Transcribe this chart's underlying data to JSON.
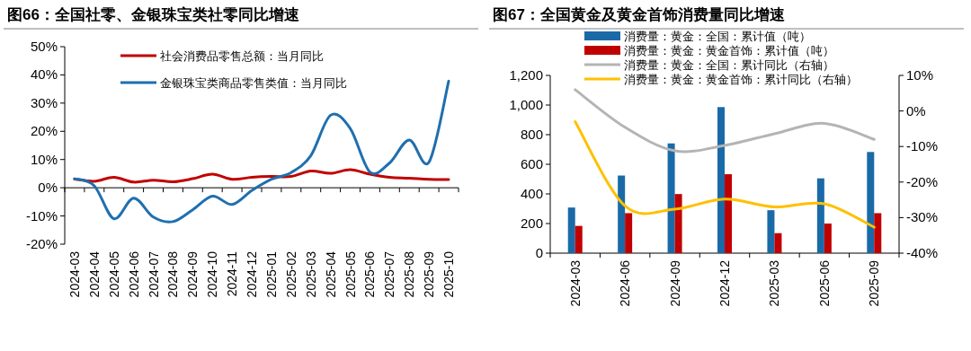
{
  "chart_data": [
    {
      "type": "line",
      "title": "图66：全国社零、金银珠宝类社零同比增速",
      "categories": [
        "2024-03",
        "2024-04",
        "2024-05",
        "2024-06",
        "2024-07",
        "2024-08",
        "2024-09",
        "2024-10",
        "2024-11",
        "2024-12",
        "2025-01",
        "2025-02",
        "2025-03",
        "2025-04",
        "2025-05",
        "2025-06",
        "2025-07",
        "2025-08",
        "2025-09",
        "2025-10"
      ],
      "series": [
        {
          "name": "社会消费品零售总额：当月同比",
          "color": "#c00000",
          "values": [
            3.1,
            2.3,
            3.7,
            2.0,
            2.7,
            2.1,
            3.2,
            4.8,
            3.0,
            3.7,
            4.0,
            4.0,
            5.9,
            5.1,
            6.4,
            4.8,
            3.7,
            3.4,
            3.0,
            2.9
          ]
        },
        {
          "name": "金银珠宝类商品零售类值：当月同比",
          "color": "#1f6fb0",
          "values": [
            3.2,
            0.7,
            -11.0,
            -3.7,
            -10.4,
            -12.0,
            -7.8,
            -3.0,
            -5.9,
            -1.0,
            3.0,
            5.4,
            11.4,
            25.7,
            21.0,
            5.6,
            8.8,
            16.9,
            9.1,
            37.8
          ]
        }
      ],
      "ylim": [
        -20,
        50
      ],
      "yticks": [
        {
          "value": -20,
          "label": "-20%"
        },
        {
          "value": -10,
          "label": "-10%"
        },
        {
          "value": 0,
          "label": "0%"
        },
        {
          "value": 10,
          "label": "10%"
        },
        {
          "value": 20,
          "label": "20%"
        },
        {
          "value": 30,
          "label": "30%"
        },
        {
          "value": 40,
          "label": "40%"
        },
        {
          "value": 50,
          "label": "50%"
        }
      ],
      "legend": "top"
    },
    {
      "type": "bar",
      "title": "图67：全国黄金及黄金首饰消费量同比增速",
      "categories": [
        "2024-03",
        "2024-06",
        "2024-09",
        "2024-12",
        "2025-03",
        "2025-06",
        "2025-09"
      ],
      "series": [
        {
          "name": "消费量：黄金：全国：累计值（吨）",
          "color": "#1a6aa8",
          "values": [
            308,
            524,
            741,
            986,
            290,
            505,
            683
          ]
        },
        {
          "name": "消费量：黄金：黄金首饰：累计值（吨）",
          "color": "#c00000",
          "values": [
            184,
            270,
            399,
            533,
            135,
            200,
            270
          ]
        },
        {
          "name": "消费量：黄金：全国：累计同比（右轴）",
          "type": "line",
          "axis": "y2",
          "color": "#b4b4b4",
          "values": [
            6.0,
            -4.6,
            -11.2,
            -9.7,
            -6.4,
            -3.5,
            -8.0
          ]
        },
        {
          "name": "消费量：黄金：黄金首饰：累计同比（右轴）",
          "type": "line",
          "axis": "y2",
          "color": "#ffc000",
          "values": [
            -3.0,
            -26.7,
            -27.6,
            -24.8,
            -27.0,
            -26.1,
            -32.7
          ]
        }
      ],
      "ylim": [
        0,
        1200
      ],
      "yticks": [
        0,
        200,
        400,
        600,
        800,
        {
          "value": 1000,
          "label": "1,000"
        },
        {
          "value": 1200,
          "label": "1,200"
        }
      ],
      "y2lim": [
        -40,
        10
      ],
      "y2ticks": [
        {
          "value": -40,
          "label": "-40%"
        },
        {
          "value": -30,
          "label": "-30%"
        },
        {
          "value": -20,
          "label": "-20%"
        },
        {
          "value": -10,
          "label": "-10%"
        },
        {
          "value": 0,
          "label": "0%"
        },
        {
          "value": 10,
          "label": "10%"
        }
      ],
      "legend": "top"
    }
  ]
}
